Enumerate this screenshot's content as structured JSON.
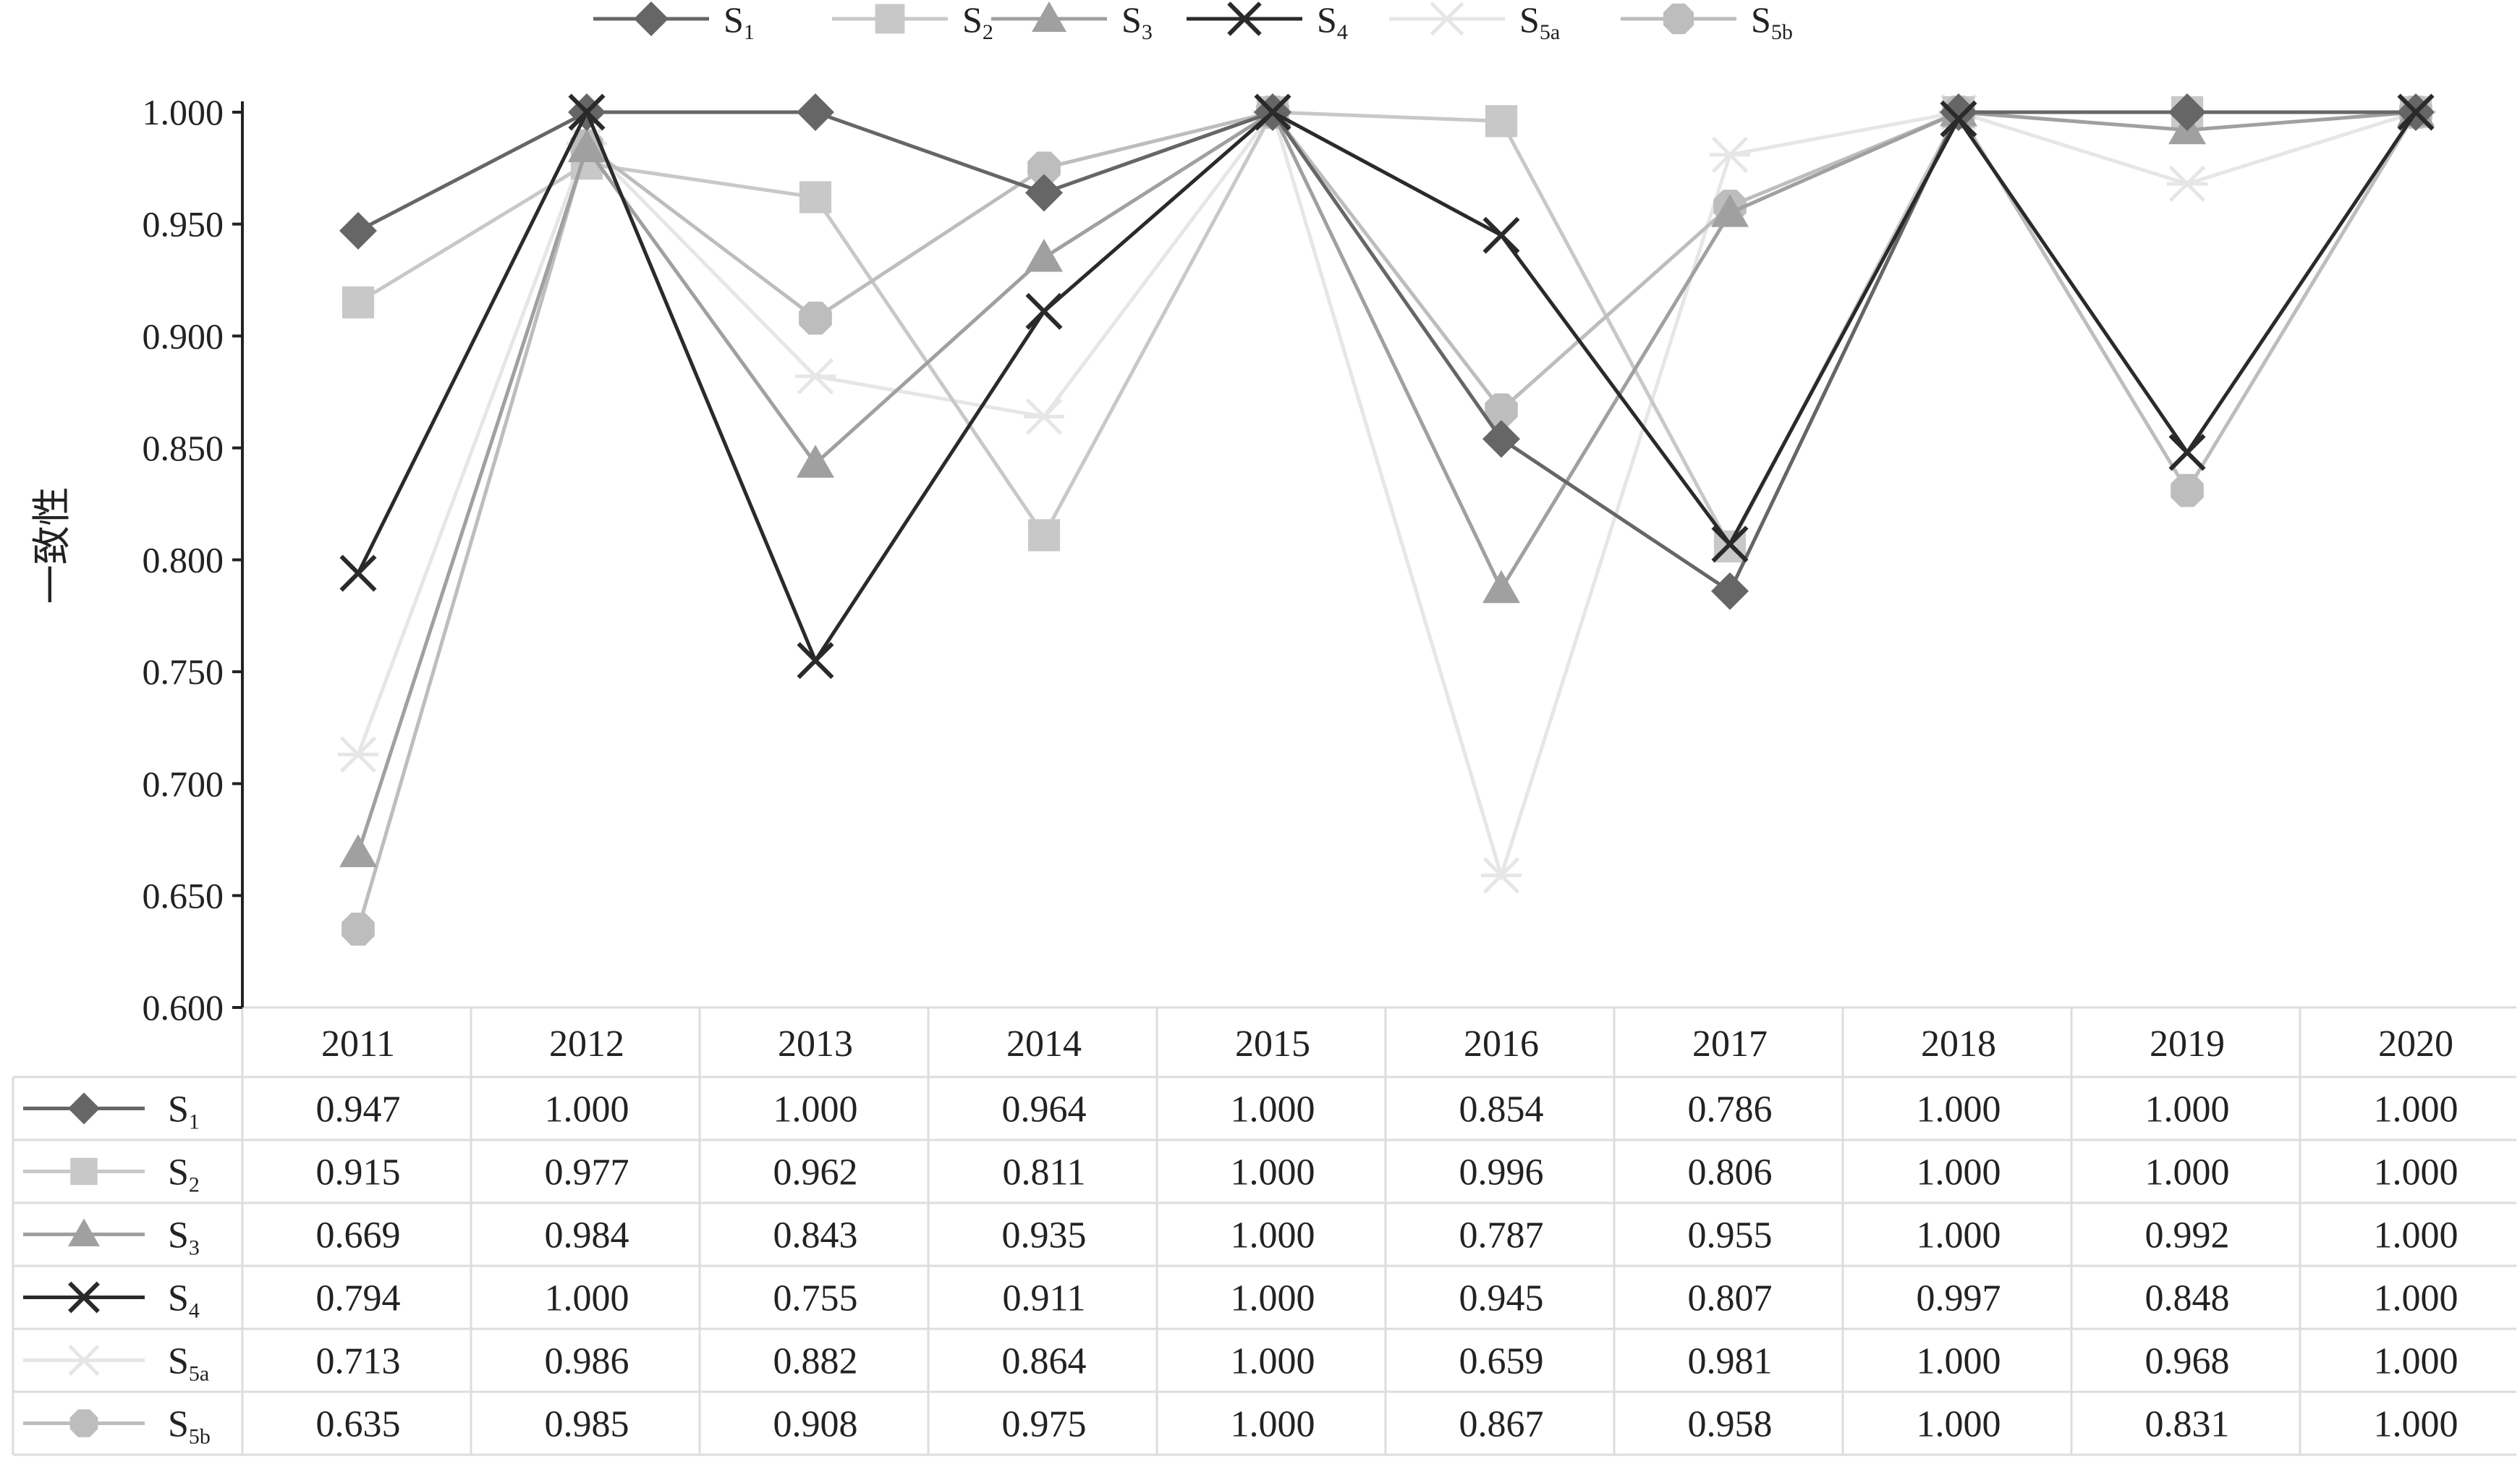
{
  "chart_data": {
    "type": "line",
    "title": "",
    "xlabel": "",
    "ylabel": "一致性",
    "ylim": [
      0.6,
      1.0
    ],
    "y_ticks": [
      "0.600",
      "0.650",
      "0.700",
      "0.750",
      "0.800",
      "0.850",
      "0.900",
      "0.950",
      "1.000"
    ],
    "categories": [
      "2011",
      "2012",
      "2013",
      "2014",
      "2015",
      "2016",
      "2017",
      "2018",
      "2019",
      "2020"
    ],
    "legend_position": "top",
    "grid": false,
    "data_table": true,
    "series": [
      {
        "name": "S",
        "sub": "1",
        "marker": "diamond",
        "color": "#666666",
        "values": [
          0.947,
          1.0,
          1.0,
          0.964,
          1.0,
          0.854,
          0.786,
          1.0,
          1.0,
          1.0
        ],
        "labels": [
          "0.947",
          "1.000",
          "1.000",
          "0.964",
          "1.000",
          "0.854",
          "0.786",
          "1.000",
          "1.000",
          "1.000"
        ]
      },
      {
        "name": "S",
        "sub": "2",
        "marker": "square",
        "color": "#c8c8c8",
        "values": [
          0.915,
          0.977,
          0.962,
          0.811,
          1.0,
          0.996,
          0.806,
          1.0,
          1.0,
          1.0
        ],
        "labels": [
          "0.915",
          "0.977",
          "0.962",
          "0.811",
          "1.000",
          "0.996",
          "0.806",
          "1.000",
          "1.000",
          "1.000"
        ]
      },
      {
        "name": "S",
        "sub": "3",
        "marker": "triangle",
        "color": "#a0a0a0",
        "values": [
          0.669,
          0.984,
          0.843,
          0.935,
          1.0,
          0.787,
          0.955,
          1.0,
          0.992,
          1.0
        ],
        "labels": [
          "0.669",
          "0.984",
          "0.843",
          "0.935",
          "1.000",
          "0.787",
          "0.955",
          "1.000",
          "0.992",
          "1.000"
        ]
      },
      {
        "name": "S",
        "sub": "4",
        "marker": "x",
        "color": "#2a2a2a",
        "values": [
          0.794,
          1.0,
          0.755,
          0.911,
          1.0,
          0.945,
          0.807,
          0.997,
          0.848,
          1.0
        ],
        "labels": [
          "0.794",
          "1.000",
          "0.755",
          "0.911",
          "1.000",
          "0.945",
          "0.807",
          "0.997",
          "0.848",
          "1.000"
        ]
      },
      {
        "name": "S",
        "sub": "5a",
        "marker": "asterisk",
        "color": "#e6e6e6",
        "values": [
          0.713,
          0.986,
          0.882,
          0.864,
          1.0,
          0.659,
          0.981,
          1.0,
          0.968,
          1.0
        ],
        "labels": [
          "0.713",
          "0.986",
          "0.882",
          "0.864",
          "1.000",
          "0.659",
          "0.981",
          "1.000",
          "0.968",
          "1.000"
        ]
      },
      {
        "name": "S",
        "sub": "5b",
        "marker": "circle",
        "color": "#bdbdbd",
        "values": [
          0.635,
          0.985,
          0.908,
          0.975,
          1.0,
          0.867,
          0.958,
          1.0,
          0.831,
          1.0
        ],
        "labels": [
          "0.635",
          "0.985",
          "0.908",
          "0.975",
          "1.000",
          "0.867",
          "0.958",
          "1.000",
          "0.831",
          "1.000"
        ]
      }
    ]
  }
}
